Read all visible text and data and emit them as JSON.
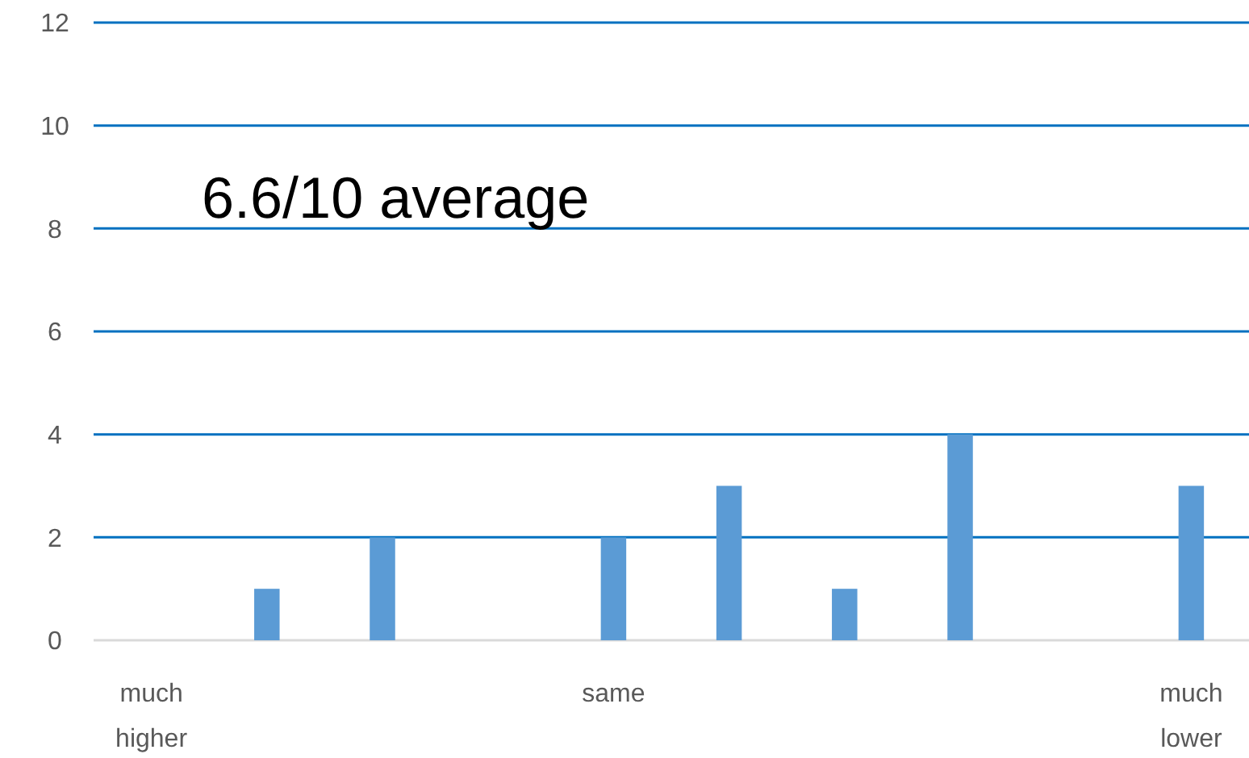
{
  "chart_data": {
    "type": "bar",
    "categories": [
      "much\nhigher",
      null,
      null,
      null,
      "same",
      null,
      null,
      null,
      null,
      "much\nlower"
    ],
    "values": [
      0,
      1,
      2,
      0,
      2,
      3,
      1,
      4,
      0,
      3
    ],
    "color": "#5b9bd5",
    "ylim": [
      0,
      12
    ],
    "yticks": [
      0,
      2,
      4,
      6,
      8,
      10,
      12
    ],
    "grid": "y",
    "annotations": [
      "6.6/10 average"
    ]
  }
}
